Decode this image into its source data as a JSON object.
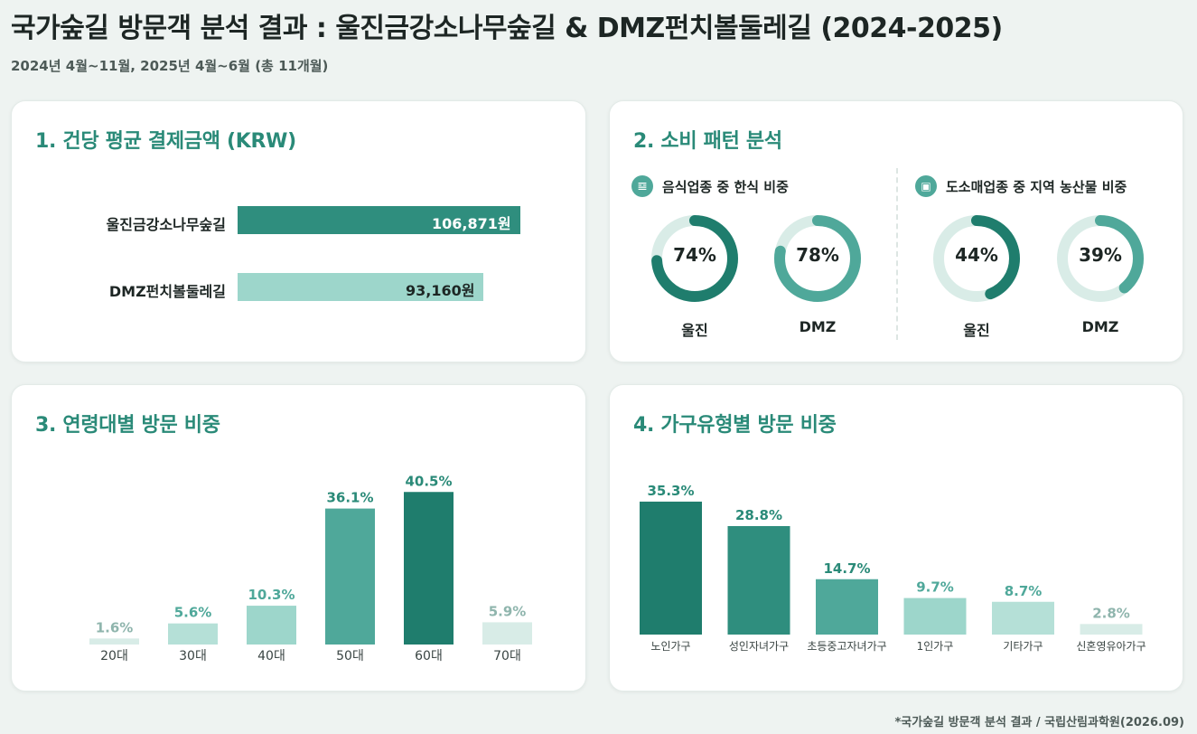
{
  "header": {
    "title": "국가숲길 방문객 분석 결과 : 울진금강소나무숲길 & DMZ펀치볼둘레길 (2024-2025)",
    "subtitle": "2024년 4월~11월, 2025년 4월~6월 (총 11개월)"
  },
  "footer": {
    "source": "*국가숲길 방문객 분석 결과 / 국립산림과학원(2026.09)"
  },
  "colors": {
    "dark": "#1f7d6d",
    "mid": "#2f8e7e",
    "teal": "#4fa89a",
    "light": "#9dd6cb",
    "pale": "#b5e0d7",
    "faint": "#d8ece7",
    "track": "#d9ece7"
  },
  "chart_data": [
    {
      "type": "bar",
      "orientation": "horizontal",
      "title": "1. 건당 평균 결제금액 (KRW)",
      "categories": [
        "울진금강소나무숲길",
        "DMZ펀치볼둘레길"
      ],
      "values": [
        106871,
        93160
      ],
      "value_labels": [
        "106,871원",
        "93,160원"
      ],
      "xlim": [
        0,
        112000
      ]
    },
    {
      "type": "pie",
      "variant": "donut",
      "title": "2. 소비 패턴 분석",
      "groups": [
        {
          "name": "음식업종 중 한식 비중",
          "icon": "utensils-icon",
          "categories": [
            "울진",
            "DMZ"
          ],
          "values": [
            74,
            78
          ],
          "value_labels": [
            "74%",
            "78%"
          ]
        },
        {
          "name": "도소매업종 중 지역 농산물 비중",
          "icon": "shopping-bag-icon",
          "categories": [
            "울진",
            "DMZ"
          ],
          "values": [
            44,
            39
          ],
          "value_labels": [
            "44%",
            "39%"
          ]
        }
      ]
    },
    {
      "type": "bar",
      "title": "3. 연령대별 방문 비중",
      "categories": [
        "20대",
        "30대",
        "40대",
        "50대",
        "60대",
        "70대"
      ],
      "values": [
        1.6,
        5.6,
        10.3,
        36.1,
        40.5,
        5.9
      ],
      "value_labels": [
        "1.6%",
        "5.6%",
        "10.3%",
        "36.1%",
        "40.5%",
        "5.9%"
      ],
      "ylim": [
        0,
        42
      ]
    },
    {
      "type": "bar",
      "title": "4. 가구유형별 방문 비중",
      "categories": [
        "노인가구",
        "성인자녀가구",
        "초등중고자녀가구",
        "1인가구",
        "기타가구",
        "신혼영유아가구"
      ],
      "values": [
        35.3,
        28.8,
        14.7,
        9.7,
        8.7,
        2.8
      ],
      "value_labels": [
        "35.3%",
        "28.8%",
        "14.7%",
        "9.7%",
        "8.7%",
        "2.8%"
      ],
      "ylim": [
        0,
        36
      ]
    }
  ]
}
